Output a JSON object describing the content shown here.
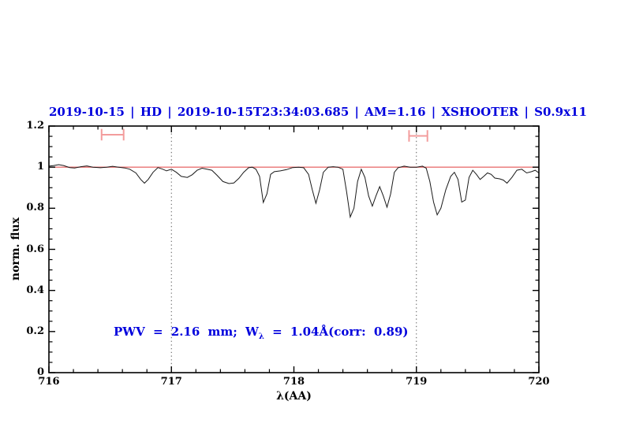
{
  "title": "2019-10-15 | HD | 2019-10-15T23:34:03.685 | AM=1.16 | XSHOOTER | S0.9x11",
  "annotation": {
    "pre": "PWV = 2.16 mm; W",
    "sub": "λ",
    "post": " = 1.04Å(corr: 0.89)"
  },
  "colors": {
    "accent_blue": "#0000dd",
    "continuum_red": "#e87272",
    "marker_pink": "#f39c9c",
    "spectrum_black": "#1a1a1a",
    "dotted_gray": "#555555",
    "axis_black": "#000000"
  },
  "chart_data": {
    "type": "line",
    "title": "2019-10-15 | HD | 2019-10-15T23:34:03.685 | AM=1.16 | XSHOOTER | S0.9x11",
    "xlabel": "λ(AA)",
    "ylabel": "norm. flux",
    "xlim": [
      716,
      720
    ],
    "ylim": [
      0,
      1.2
    ],
    "x_tick_labels": [
      "716",
      "717",
      "718",
      "719",
      "720"
    ],
    "x_tick_values": [
      716,
      717,
      718,
      719,
      720
    ],
    "y_tick_labels": [
      "0",
      "0.2",
      "0.4",
      "0.6",
      "0.8",
      "1",
      "1.2"
    ],
    "y_tick_values": [
      0,
      0.2,
      0.4,
      0.6,
      0.8,
      1,
      1.2
    ],
    "x_minor_step": 0.2,
    "y_minor_step": 0.05,
    "grid": "off",
    "vlines_dotted": [
      717,
      719
    ],
    "continuum_line_y": 1.0,
    "interval_markers": [
      {
        "x_from": 716.43,
        "x_to": 716.61,
        "y": 1.158,
        "cap_half_height": 0.028
      },
      {
        "x_from": 718.94,
        "x_to": 719.09,
        "y": 1.152,
        "cap_half_height": 0.028
      }
    ],
    "series": [
      {
        "name": "normalized-spectrum",
        "points": [
          [
            716.0,
            1.005
          ],
          [
            716.04,
            1.008
          ],
          [
            716.08,
            1.012
          ],
          [
            716.12,
            1.008
          ],
          [
            716.17,
            0.998
          ],
          [
            716.21,
            0.996
          ],
          [
            716.26,
            1.002
          ],
          [
            716.31,
            1.006
          ],
          [
            716.36,
            1.0
          ],
          [
            716.42,
            0.997
          ],
          [
            716.47,
            1.0
          ],
          [
            716.52,
            1.004
          ],
          [
            716.57,
            1.0
          ],
          [
            716.62,
            0.996
          ],
          [
            716.66,
            0.99
          ],
          [
            716.71,
            0.972
          ],
          [
            716.75,
            0.94
          ],
          [
            716.78,
            0.922
          ],
          [
            716.81,
            0.94
          ],
          [
            716.85,
            0.975
          ],
          [
            716.89,
            0.998
          ],
          [
            716.93,
            0.99
          ],
          [
            716.96,
            0.982
          ],
          [
            717.0,
            0.99
          ],
          [
            717.04,
            0.975
          ],
          [
            717.08,
            0.955
          ],
          [
            717.13,
            0.95
          ],
          [
            717.17,
            0.963
          ],
          [
            717.21,
            0.985
          ],
          [
            717.25,
            0.995
          ],
          [
            717.29,
            0.99
          ],
          [
            717.33,
            0.985
          ],
          [
            717.37,
            0.962
          ],
          [
            717.42,
            0.93
          ],
          [
            717.47,
            0.92
          ],
          [
            717.51,
            0.923
          ],
          [
            717.55,
            0.945
          ],
          [
            717.59,
            0.975
          ],
          [
            717.63,
            0.997
          ],
          [
            717.66,
            1.0
          ],
          [
            717.69,
            0.99
          ],
          [
            717.72,
            0.955
          ],
          [
            717.75,
            0.828
          ],
          [
            717.78,
            0.87
          ],
          [
            717.81,
            0.965
          ],
          [
            717.84,
            0.978
          ],
          [
            717.89,
            0.982
          ],
          [
            717.94,
            0.988
          ],
          [
            717.99,
            0.998
          ],
          [
            718.04,
            1.0
          ],
          [
            718.08,
            0.997
          ],
          [
            718.12,
            0.965
          ],
          [
            718.15,
            0.89
          ],
          [
            718.18,
            0.824
          ],
          [
            718.21,
            0.89
          ],
          [
            718.24,
            0.975
          ],
          [
            718.28,
            1.0
          ],
          [
            718.32,
            1.002
          ],
          [
            718.36,
            1.0
          ],
          [
            718.4,
            0.99
          ],
          [
            718.43,
            0.88
          ],
          [
            718.46,
            0.757
          ],
          [
            718.49,
            0.8
          ],
          [
            718.52,
            0.93
          ],
          [
            718.55,
            0.99
          ],
          [
            718.58,
            0.95
          ],
          [
            718.61,
            0.86
          ],
          [
            718.64,
            0.81
          ],
          [
            718.67,
            0.86
          ],
          [
            718.7,
            0.905
          ],
          [
            718.73,
            0.86
          ],
          [
            718.76,
            0.805
          ],
          [
            718.79,
            0.87
          ],
          [
            718.82,
            0.975
          ],
          [
            718.85,
            0.997
          ],
          [
            718.9,
            1.005
          ],
          [
            718.95,
            1.0
          ],
          [
            719.0,
            1.0
          ],
          [
            719.05,
            1.005
          ],
          [
            719.08,
            0.995
          ],
          [
            719.11,
            0.93
          ],
          [
            719.14,
            0.83
          ],
          [
            719.17,
            0.768
          ],
          [
            719.2,
            0.8
          ],
          [
            719.24,
            0.89
          ],
          [
            719.28,
            0.955
          ],
          [
            719.31,
            0.975
          ],
          [
            719.34,
            0.94
          ],
          [
            719.37,
            0.83
          ],
          [
            719.4,
            0.84
          ],
          [
            719.43,
            0.95
          ],
          [
            719.46,
            0.985
          ],
          [
            719.49,
            0.965
          ],
          [
            719.52,
            0.94
          ],
          [
            719.55,
            0.955
          ],
          [
            719.58,
            0.972
          ],
          [
            719.61,
            0.965
          ],
          [
            719.64,
            0.947
          ],
          [
            719.68,
            0.943
          ],
          [
            719.71,
            0.937
          ],
          [
            719.74,
            0.922
          ],
          [
            719.78,
            0.95
          ],
          [
            719.82,
            0.985
          ],
          [
            719.86,
            0.99
          ],
          [
            719.9,
            0.972
          ],
          [
            719.94,
            0.978
          ],
          [
            719.97,
            0.985
          ],
          [
            720.0,
            0.972
          ]
        ]
      }
    ]
  }
}
